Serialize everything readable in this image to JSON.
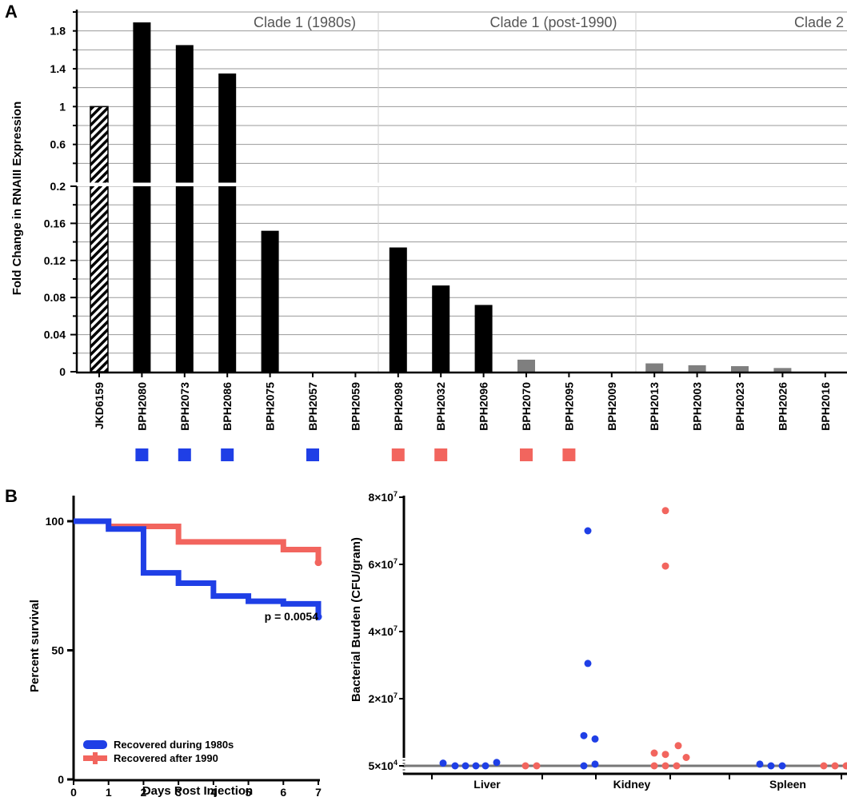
{
  "panel_labels": {
    "a": "A",
    "b": "B"
  },
  "colors": {
    "clade1980s": "#1f3fe6",
    "post1990": "#f2655e",
    "bar": "#000000",
    "bar_grey": "#7f7f7f",
    "grid": "#9a9a9a",
    "line": "#777777"
  },
  "chart_data": [
    {
      "type": "bar",
      "ylabel": "Fold Change in RNAIII Expression",
      "axis_break": [
        0.2,
        0.2
      ],
      "lower_ticks": [
        "0",
        "0.04",
        "0.08",
        "0.12",
        "0.16",
        "0.2"
      ],
      "upper_ticks": [
        "0.6",
        "1",
        "1.4",
        "1.8"
      ],
      "clade_labels": [
        "Clade 1 (1980s)",
        "Clade 1 (post-1990)",
        "Clade 2"
      ],
      "categories": [
        "JKD6159",
        "BPH2080",
        "BPH2073",
        "BPH2086",
        "BPH2075",
        "BPH2057",
        "BPH2059",
        "BPH2098",
        "BPH2032",
        "BPH2096",
        "BPH2070",
        "BPH2095",
        "BPH2009",
        "BPH2013",
        "BPH2003",
        "BPH2023",
        "BPH2026",
        "BPH2016"
      ],
      "values": [
        1.0,
        1.89,
        1.65,
        1.35,
        0.152,
        0.0,
        0.0,
        0.134,
        0.093,
        0.072,
        0.013,
        0.0,
        0.0,
        0.009,
        0.007,
        0.006,
        0.004,
        0.0
      ],
      "bar_style": [
        "hatched",
        "black",
        "black",
        "black",
        "black",
        "black",
        "black",
        "black",
        "black",
        "black",
        "grey",
        "grey",
        "grey",
        "grey",
        "grey",
        "grey",
        "grey",
        "grey"
      ],
      "markers": [
        "",
        "1980s",
        "1980s",
        "1980s",
        "",
        "1980s",
        "",
        "post1990",
        "post1990",
        "",
        "post1990",
        "post1990",
        "",
        "",
        "",
        "",
        "",
        ""
      ]
    },
    {
      "type": "line",
      "ylabel": "Percent survival",
      "xlabel": "Days Post Injection",
      "xticks": [
        "0",
        "1",
        "2",
        "3",
        "4",
        "5",
        "6",
        "7"
      ],
      "yticks": [
        "0",
        "50",
        "100"
      ],
      "xlim": [
        0,
        7
      ],
      "ylim": [
        0,
        110
      ],
      "annotation": "p = 0.0054",
      "series": [
        {
          "name": "Recovered during 1980s",
          "color_key": "clade1980s",
          "steps": [
            [
              0,
              100
            ],
            [
              1,
              97
            ],
            [
              2,
              80
            ],
            [
              3,
              76
            ],
            [
              4,
              71
            ],
            [
              5,
              69
            ],
            [
              6,
              68
            ],
            [
              7,
              63
            ]
          ]
        },
        {
          "name": "Recovered after 1990",
          "color_key": "post1990",
          "steps": [
            [
              0,
              100
            ],
            [
              1,
              98
            ],
            [
              3,
              92
            ],
            [
              6,
              89
            ],
            [
              7,
              84
            ]
          ]
        }
      ]
    },
    {
      "type": "scatter",
      "ylabel": "Bacterial Burden (CFU/gram)",
      "categories": [
        "Liver",
        "Kidney",
        "Spleen"
      ],
      "ytick_mantissas": [
        "5×10",
        "2×10",
        "4×10",
        "6×10",
        "8×10"
      ],
      "ytick_exponents": [
        "4",
        "7",
        "7",
        "7",
        "7"
      ],
      "ytick_values": [
        50000,
        20000000,
        40000000,
        60000000,
        80000000
      ],
      "ylim": [
        0,
        80000000
      ],
      "detection_limit": 50000,
      "series": [
        {
          "name": "Recovered during 1980s",
          "color_key": "clade1980s",
          "points": [
            [
              "Liver",
              -0.55,
              800000
            ],
            [
              "Liver",
              -0.4,
              50000
            ],
            [
              "Liver",
              -0.27,
              50000
            ],
            [
              "Liver",
              -0.14,
              50000
            ],
            [
              "Liver",
              -0.02,
              50000
            ],
            [
              "Liver",
              0.12,
              1000000
            ],
            [
              "Kidney",
              -0.55,
              70000000
            ],
            [
              "Kidney",
              -0.55,
              30500000
            ],
            [
              "Kidney",
              -0.6,
              9000000
            ],
            [
              "Kidney",
              -0.46,
              8000000
            ],
            [
              "Kidney",
              -0.6,
              50000
            ],
            [
              "Kidney",
              -0.46,
              500000
            ],
            [
              "Spleen",
              -0.35,
              500000
            ],
            [
              "Spleen",
              -0.21,
              50000
            ],
            [
              "Spleen",
              -0.07,
              50000
            ]
          ]
        },
        {
          "name": "Recovered after 1990",
          "color_key": "post1990",
          "points": [
            [
              "Liver",
              0.48,
              50000
            ],
            [
              "Liver",
              0.62,
              50000
            ],
            [
              "Kidney",
              0.42,
              76000000
            ],
            [
              "Kidney",
              0.42,
              59500000
            ],
            [
              "Kidney",
              0.28,
              50000
            ],
            [
              "Kidney",
              0.42,
              50000
            ],
            [
              "Kidney",
              0.56,
              50000
            ],
            [
              "Kidney",
              0.28,
              3800000
            ],
            [
              "Kidney",
              0.42,
              3400000
            ],
            [
              "Kidney",
              0.58,
              6000000
            ],
            [
              "Kidney",
              0.68,
              2500000
            ],
            [
              "Spleen",
              0.45,
              50000
            ],
            [
              "Spleen",
              0.59,
              50000
            ],
            [
              "Spleen",
              0.73,
              50000
            ]
          ]
        }
      ]
    }
  ]
}
